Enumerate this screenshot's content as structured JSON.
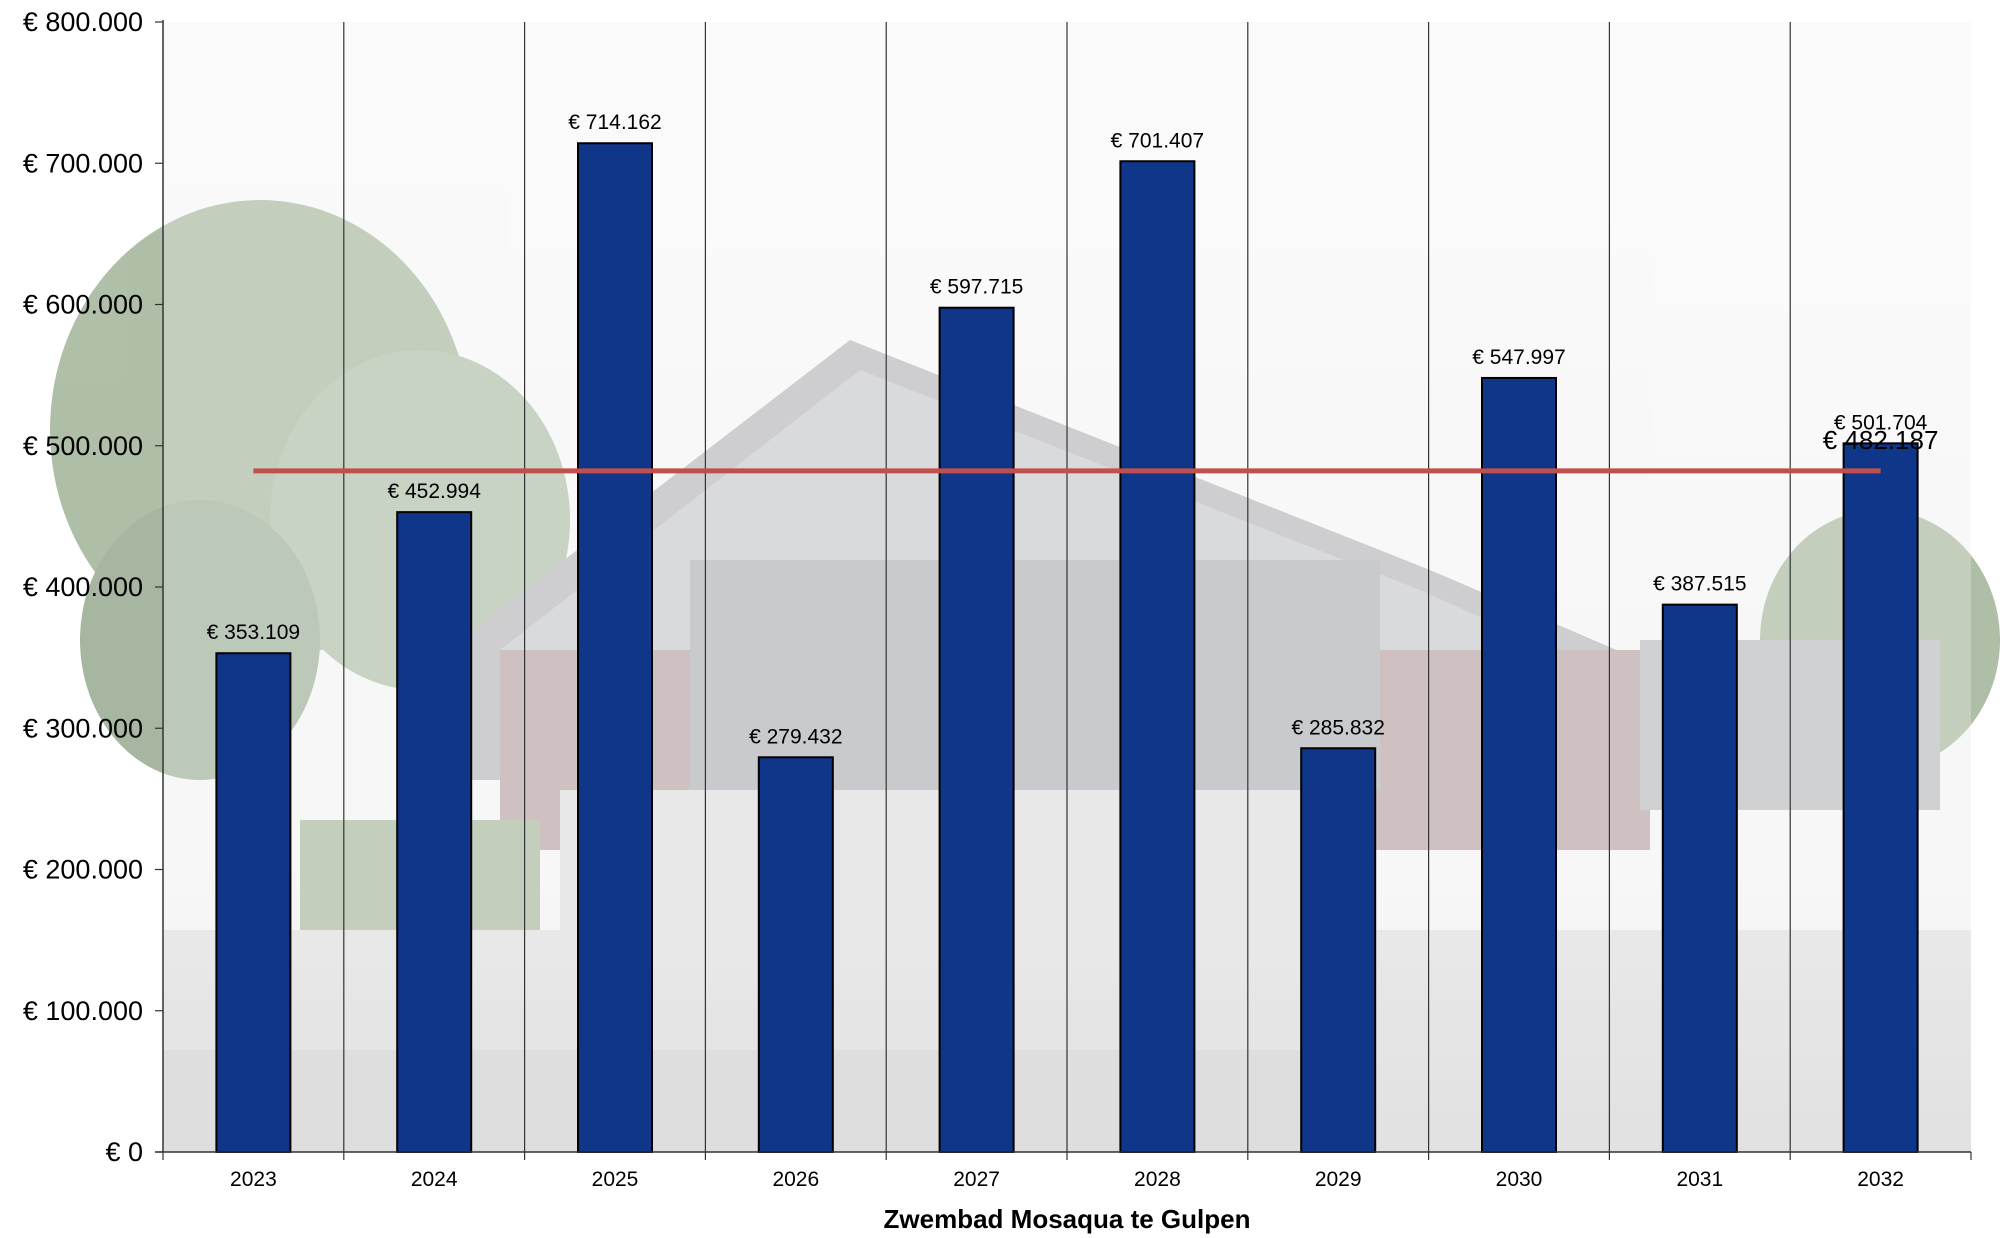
{
  "chart_data": {
    "type": "bar",
    "title": "",
    "xlabel": "Zwembad Mosaqua te Gulpen",
    "ylabel": "",
    "categories": [
      "2023",
      "2024",
      "2025",
      "2026",
      "2027",
      "2028",
      "2029",
      "2030",
      "2031",
      "2032"
    ],
    "values": [
      353109,
      452994,
      714162,
      279432,
      597715,
      701407,
      285832,
      547997,
      387515,
      501704
    ],
    "data_labels": [
      "€ 353.109",
      "€ 452.994",
      "€ 714.162",
      "€ 279.432",
      "€ 597.715",
      "€ 701.407",
      "€ 285.832",
      "€ 547.997",
      "€ 387.515",
      "€ 501.704"
    ],
    "average": {
      "value": 482187,
      "label": "€ 482.187",
      "color": "#c0504d"
    },
    "ylim": [
      0,
      800000
    ],
    "y_ticks": [
      {
        "value": 0,
        "label": "€ 0"
      },
      {
        "value": 100000,
        "label": "€ 100.000"
      },
      {
        "value": 200000,
        "label": "€ 200.000"
      },
      {
        "value": 300000,
        "label": "€ 300.000"
      },
      {
        "value": 400000,
        "label": "€ 400.000"
      },
      {
        "value": 500000,
        "label": "€ 500.000"
      },
      {
        "value": 600000,
        "label": "€ 600.000"
      },
      {
        "value": 700000,
        "label": "€ 700.000"
      },
      {
        "value": 800000,
        "label": "€ 800.000"
      }
    ],
    "grid": {
      "vertical": true,
      "horizontal": false
    },
    "legend": "none",
    "bar_color": "#10368a",
    "background": "photo of swimming pool building (faded)"
  }
}
